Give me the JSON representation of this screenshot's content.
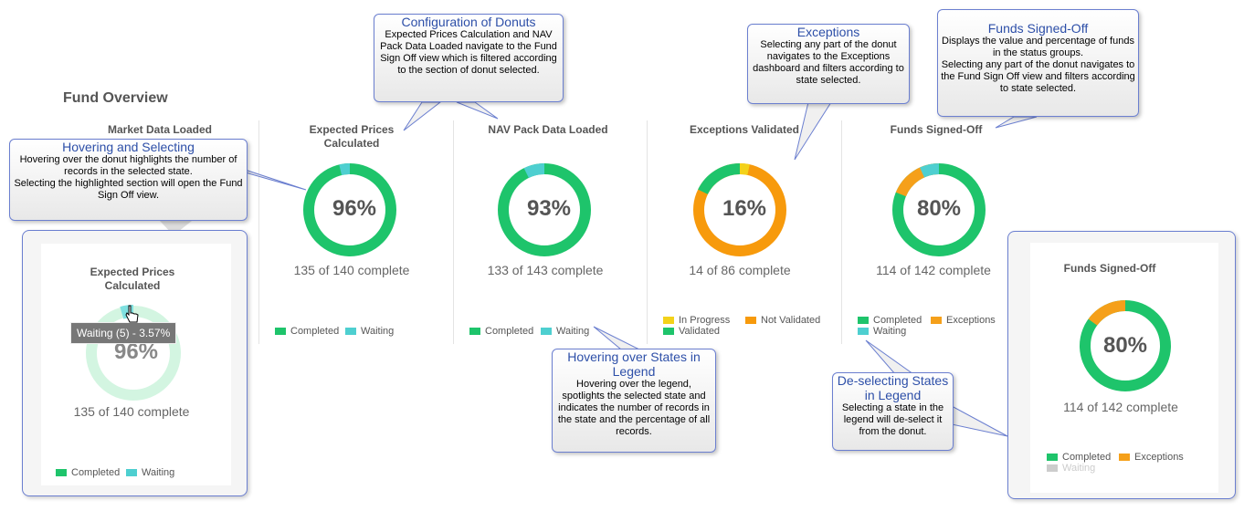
{
  "page_title": "Fund Overview",
  "colors": {
    "completed": "#1ec46b",
    "waiting": "#4ecfd0",
    "exceptions": "#f5a01a",
    "not_validated": "#f79a0c",
    "in_progress": "#f3d21a",
    "disabled": "#cccccc"
  },
  "panels": [
    {
      "title": "Market Data Loaded"
    },
    {
      "title": "Expected Prices\nCalculated",
      "pct": "96%",
      "count": "135 of 140 complete",
      "legend": [
        "Completed",
        "Waiting"
      ]
    },
    {
      "title": "NAV Pack Data Loaded",
      "pct": "93%",
      "count": "133 of 143 complete",
      "legend": [
        "Completed",
        "Waiting"
      ]
    },
    {
      "title": "Exceptions Validated",
      "pct": "16%",
      "count": "14 of 86 complete",
      "legend": [
        "In Progress",
        "Not Validated",
        "Validated"
      ]
    },
    {
      "title": "Funds Signed-Off",
      "pct": "80%",
      "count": "114 of 142 complete",
      "legend": [
        "Completed",
        "Exceptions",
        "Waiting"
      ]
    }
  ],
  "zoom_left": {
    "title": "Expected Prices\nCalculated",
    "pct": "96%",
    "count": "135 of 140 complete",
    "tooltip": "Waiting (5) - 3.57%",
    "legend": [
      "Completed",
      "Waiting"
    ]
  },
  "zoom_right": {
    "title": "Funds Signed-Off",
    "pct": "80%",
    "count": "114 of 142 complete",
    "legend": [
      "Completed",
      "Exceptions",
      "Waiting"
    ]
  },
  "callouts": {
    "config": {
      "title": "Configuration of Donuts",
      "body": "Expected Prices Calculation and NAV Pack Data Loaded navigate to the Fund Sign Off view which is filtered according to the section of donut selected."
    },
    "hover": {
      "title": "Hovering and Selecting",
      "body": "Hovering over the donut highlights the number of records in the selected state.\nSelecting the highlighted section will open the Fund Sign Off view."
    },
    "exceptions": {
      "title": "Exceptions",
      "body": "Selecting any part of the donut navigates to the Exceptions dashboard and filters according to state selected."
    },
    "funds": {
      "title": "Funds Signed-Off",
      "body": "Displays the value and percentage of funds in the status groups.\nSelecting any part of the donut navigates to the Fund Sign Off view and filters according to state selected."
    },
    "legend_hover": {
      "title": "Hovering over States in Legend",
      "body": "Hovering over the legend, spotlights the selected state and indicates the number of records in the state and the percentage of all records."
    },
    "deselect": {
      "title": "De-selecting States in Legend",
      "body": "Selecting a state in the legend will de-select it from the donut."
    }
  }
}
